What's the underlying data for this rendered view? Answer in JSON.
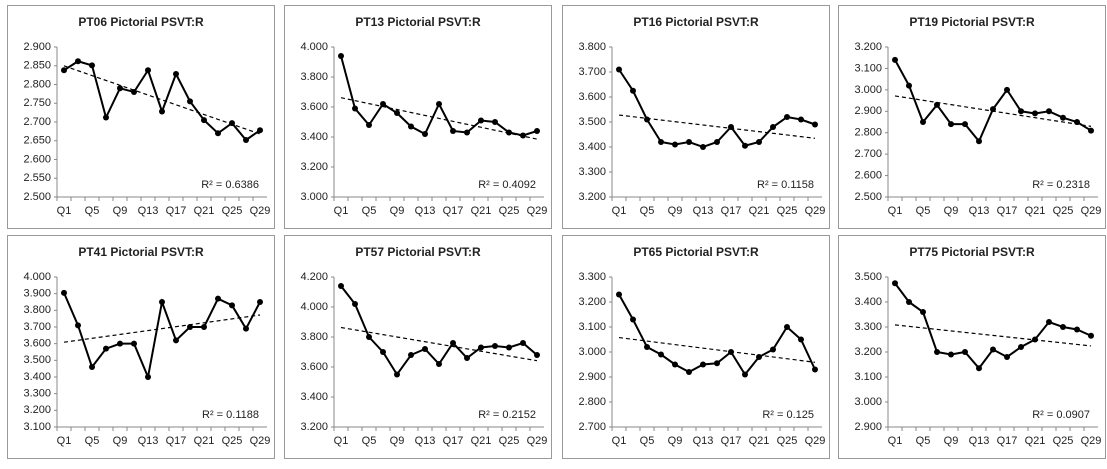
{
  "chart_data": [
    {
      "type": "line",
      "title": "PT06 Pictorial PSVT:R",
      "annotation": "R² = 0.6386",
      "color": "#000000",
      "trendline": true,
      "categories": [
        "Q1",
        null,
        "Q5",
        null,
        "Q9",
        null,
        "Q13",
        null,
        "Q17",
        null,
        "Q21",
        null,
        "Q25",
        null,
        "Q29"
      ],
      "values": [
        2.838,
        2.862,
        2.851,
        2.712,
        2.79,
        2.78,
        2.838,
        2.728,
        2.828,
        2.755,
        2.705,
        2.67,
        2.697,
        2.652,
        2.678
      ],
      "ylim": [
        2.5,
        2.9
      ],
      "yticks": [
        {
          "value": 2.5,
          "label": "2.500"
        },
        {
          "value": 2.55,
          "label": "2.550"
        },
        {
          "value": 2.6,
          "label": "2.600"
        },
        {
          "value": 2.65,
          "label": "2.650"
        },
        {
          "value": 2.7,
          "label": "2.700"
        },
        {
          "value": 2.75,
          "label": "2.750"
        },
        {
          "value": 2.8,
          "label": "2.800"
        },
        {
          "value": 2.85,
          "label": "2.850"
        },
        {
          "value": 2.9,
          "label": "2.900"
        }
      ]
    },
    {
      "type": "line",
      "title": "PT13 Pictorial PSVT:R",
      "annotation": "R² = 0.4092",
      "color": "#000000",
      "trendline": true,
      "categories": [
        "Q1",
        null,
        "Q5",
        null,
        "Q9",
        null,
        "Q13",
        null,
        "Q17",
        null,
        "Q21",
        null,
        "Q25",
        null,
        "Q29"
      ],
      "values": [
        3.94,
        3.59,
        3.48,
        3.62,
        3.56,
        3.47,
        3.42,
        3.62,
        3.44,
        3.43,
        3.51,
        3.5,
        3.43,
        3.41,
        3.44
      ],
      "ylim": [
        3.0,
        4.0
      ],
      "yticks": [
        {
          "value": 3.0,
          "label": "3.000"
        },
        {
          "value": 3.2,
          "label": "3.200"
        },
        {
          "value": 3.4,
          "label": "3.400"
        },
        {
          "value": 3.6,
          "label": "3.600"
        },
        {
          "value": 3.8,
          "label": "3.800"
        },
        {
          "value": 4.0,
          "label": "4.000"
        }
      ]
    },
    {
      "type": "line",
      "title": "PT16 Pictorial PSVT:R",
      "annotation": "R² = 0.1158",
      "color": "#000000",
      "trendline": true,
      "categories": [
        "Q1",
        null,
        "Q5",
        null,
        "Q9",
        null,
        "Q13",
        null,
        "Q17",
        null,
        "Q21",
        null,
        "Q25",
        null,
        "Q29"
      ],
      "values": [
        3.71,
        3.625,
        3.51,
        3.42,
        3.41,
        3.42,
        3.4,
        3.42,
        3.48,
        3.405,
        3.42,
        3.48,
        3.52,
        3.51,
        3.49
      ],
      "ylim": [
        3.2,
        3.8
      ],
      "yticks": [
        {
          "value": 3.2,
          "label": "3.200"
        },
        {
          "value": 3.3,
          "label": "3.300"
        },
        {
          "value": 3.4,
          "label": "3.400"
        },
        {
          "value": 3.5,
          "label": "3.500"
        },
        {
          "value": 3.6,
          "label": "3.600"
        },
        {
          "value": 3.7,
          "label": "3.700"
        },
        {
          "value": 3.8,
          "label": "3.800"
        }
      ]
    },
    {
      "type": "line",
      "title": "PT19 Pictorial PSVT:R",
      "annotation": "R² = 0.2318",
      "color": "#000000",
      "trendline": true,
      "categories": [
        "Q1",
        null,
        "Q5",
        null,
        "Q9",
        null,
        "Q13",
        null,
        "Q17",
        null,
        "Q21",
        null,
        "Q25",
        null,
        "Q29"
      ],
      "values": [
        3.14,
        3.02,
        2.85,
        2.93,
        2.84,
        2.84,
        2.76,
        2.91,
        3.0,
        2.9,
        2.89,
        2.9,
        2.87,
        2.85,
        2.81
      ],
      "ylim": [
        2.5,
        3.2
      ],
      "yticks": [
        {
          "value": 2.5,
          "label": "2.500"
        },
        {
          "value": 2.6,
          "label": "2.600"
        },
        {
          "value": 2.7,
          "label": "2.700"
        },
        {
          "value": 2.8,
          "label": "2.800"
        },
        {
          "value": 2.9,
          "label": "2.900"
        },
        {
          "value": 3.0,
          "label": "3.000"
        },
        {
          "value": 3.1,
          "label": "3.100"
        },
        {
          "value": 3.2,
          "label": "3.200"
        }
      ]
    },
    {
      "type": "line",
      "title": "PT41 Pictorial PSVT:R",
      "annotation": "R² = 0.1188",
      "color": "#000000",
      "trendline": true,
      "categories": [
        "Q1",
        null,
        "Q5",
        null,
        "Q9",
        null,
        "Q13",
        null,
        "Q17",
        null,
        "Q21",
        null,
        "Q25",
        null,
        "Q29"
      ],
      "values": [
        3.905,
        3.71,
        3.46,
        3.57,
        3.6,
        3.6,
        3.4,
        3.85,
        3.62,
        3.7,
        3.7,
        3.87,
        3.83,
        3.69,
        3.85
      ],
      "ylim": [
        3.1,
        4.0
      ],
      "yticks": [
        {
          "value": 3.1,
          "label": "3.100"
        },
        {
          "value": 3.2,
          "label": "3.200"
        },
        {
          "value": 3.3,
          "label": "3.300"
        },
        {
          "value": 3.4,
          "label": "3.400"
        },
        {
          "value": 3.5,
          "label": "3.500"
        },
        {
          "value": 3.6,
          "label": "3.600"
        },
        {
          "value": 3.7,
          "label": "3.700"
        },
        {
          "value": 3.8,
          "label": "3.800"
        },
        {
          "value": 3.9,
          "label": "3.900"
        },
        {
          "value": 4.0,
          "label": "4.000"
        }
      ]
    },
    {
      "type": "line",
      "title": "PT57 Pictorial PSVT:R",
      "annotation": "R² = 0.2152",
      "color": "#000000",
      "trendline": true,
      "categories": [
        "Q1",
        null,
        "Q5",
        null,
        "Q9",
        null,
        "Q13",
        null,
        "Q17",
        null,
        "Q21",
        null,
        "Q25",
        null,
        "Q29"
      ],
      "values": [
        4.14,
        4.02,
        3.8,
        3.7,
        3.55,
        3.68,
        3.72,
        3.62,
        3.76,
        3.66,
        3.73,
        3.74,
        3.73,
        3.76,
        3.68
      ],
      "ylim": [
        3.2,
        4.2
      ],
      "yticks": [
        {
          "value": 3.2,
          "label": "3.200"
        },
        {
          "value": 3.4,
          "label": "3.400"
        },
        {
          "value": 3.6,
          "label": "3.600"
        },
        {
          "value": 3.8,
          "label": "3.800"
        },
        {
          "value": 4.0,
          "label": "4.000"
        },
        {
          "value": 4.2,
          "label": "4.200"
        }
      ]
    },
    {
      "type": "line",
      "title": "PT65 Pictorial PSVT:R",
      "annotation": "R² = 0.125",
      "color": "#000000",
      "trendline": true,
      "categories": [
        "Q1",
        null,
        "Q5",
        null,
        "Q9",
        null,
        "Q13",
        null,
        "Q17",
        null,
        "Q21",
        null,
        "Q25",
        null,
        "Q29"
      ],
      "values": [
        3.23,
        3.13,
        3.02,
        2.99,
        2.95,
        2.92,
        2.95,
        2.955,
        3.0,
        2.91,
        2.98,
        3.01,
        3.1,
        3.05,
        2.93
      ],
      "ylim": [
        2.7,
        3.3
      ],
      "yticks": [
        {
          "value": 2.7,
          "label": "2.700"
        },
        {
          "value": 2.8,
          "label": "2.800"
        },
        {
          "value": 2.9,
          "label": "2.900"
        },
        {
          "value": 3.0,
          "label": "3.000"
        },
        {
          "value": 3.1,
          "label": "3.100"
        },
        {
          "value": 3.2,
          "label": "3.200"
        },
        {
          "value": 3.3,
          "label": "3.300"
        }
      ]
    },
    {
      "type": "line",
      "title": "PT75 Pictorial PSVT:R",
      "annotation": "R² = 0.0907",
      "color": "#000000",
      "trendline": true,
      "categories": [
        "Q1",
        null,
        "Q5",
        null,
        "Q9",
        null,
        "Q13",
        null,
        "Q17",
        null,
        "Q21",
        null,
        "Q25",
        null,
        "Q29"
      ],
      "values": [
        3.475,
        3.4,
        3.36,
        3.2,
        3.19,
        3.2,
        3.135,
        3.21,
        3.18,
        3.22,
        3.25,
        3.32,
        3.3,
        3.29,
        3.265
      ],
      "ylim": [
        2.9,
        3.5
      ],
      "yticks": [
        {
          "value": 2.9,
          "label": "2.900"
        },
        {
          "value": 3.0,
          "label": "3.000"
        },
        {
          "value": 3.1,
          "label": "3.100"
        },
        {
          "value": 3.2,
          "label": "3.200"
        },
        {
          "value": 3.3,
          "label": "3.300"
        },
        {
          "value": 3.4,
          "label": "3.400"
        },
        {
          "value": 3.5,
          "label": "3.500"
        }
      ]
    }
  ]
}
